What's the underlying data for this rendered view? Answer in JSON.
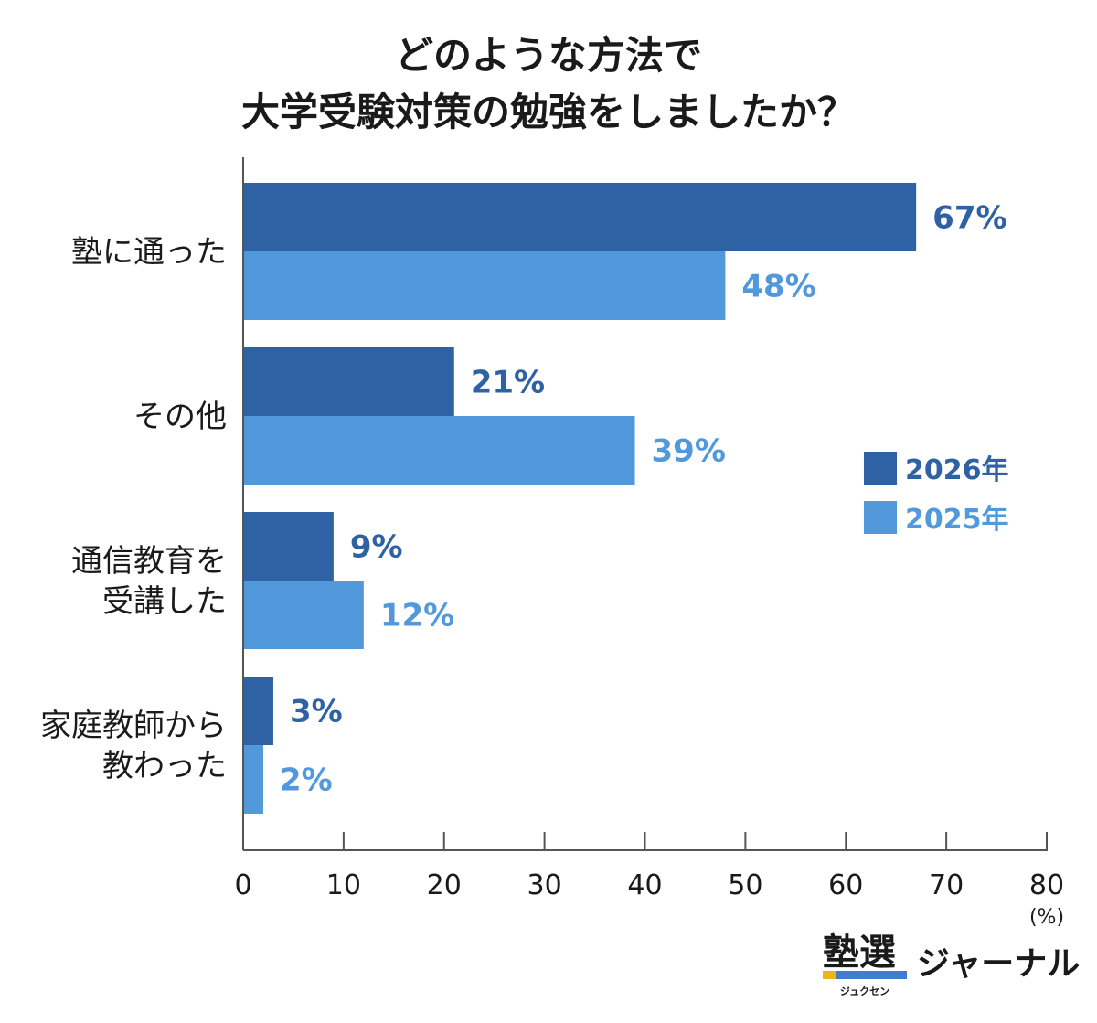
{
  "chart_data": {
    "type": "bar",
    "orientation": "horizontal",
    "title_lines": [
      "どのような方法で",
      "大学受験対策の勉強をしましたか？"
    ],
    "categories": [
      [
        "塾に通った"
      ],
      [
        "その他"
      ],
      [
        "通信教育を",
        "受講した"
      ],
      [
        "家庭教師から",
        "教わった"
      ]
    ],
    "series": [
      {
        "name": "2026年",
        "color": "#2e62a4",
        "values": [
          67,
          21,
          9,
          3
        ],
        "labels": [
          "67%",
          "21%",
          "9%",
          "3%"
        ]
      },
      {
        "name": "2025年",
        "color": "#5299dc",
        "values": [
          48,
          39,
          12,
          2
        ],
        "labels": [
          "48%",
          "39%",
          "12%",
          "2%"
        ]
      }
    ],
    "x_ticks": [
      "0",
      "10",
      "20",
      "30",
      "40",
      "50",
      "60",
      "70",
      "80"
    ],
    "xlim": [
      0,
      80
    ],
    "unit": "(%)",
    "legend_position": "right-middle",
    "grid": false
  },
  "branding": {
    "logo_kanji": "塾選",
    "logo_kana": "ジュクセン",
    "name": "ジャーナル"
  }
}
